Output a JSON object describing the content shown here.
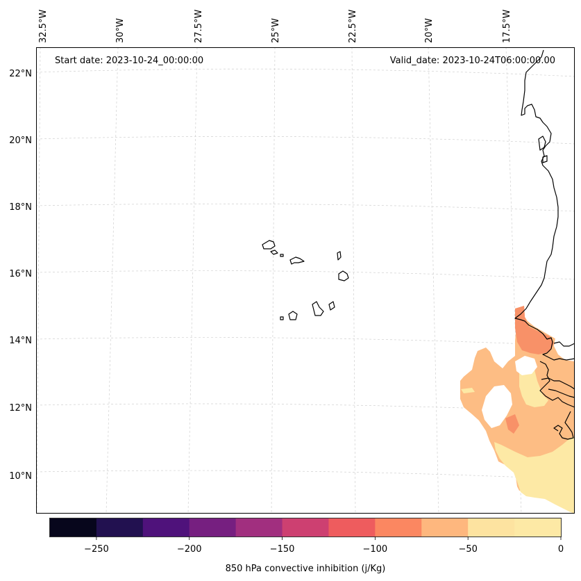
{
  "header": {
    "start_date": "Start date: 2023-10-24_00:00:00",
    "valid_date": "Valid_date: 2023-10-24T06:00:00.00"
  },
  "longitude_labels": [
    "32.5°W",
    "30°W",
    "27.5°W",
    "25°W",
    "22.5°W",
    "20°W",
    "17.5°W"
  ],
  "latitude_labels": [
    "22°N",
    "20°N",
    "18°N",
    "16°N",
    "14°N",
    "12°N",
    "10°N"
  ],
  "colorbar": {
    "label": "850 hPa convective inhibition (j/Kg)",
    "ticks": [
      "−250",
      "−200",
      "−150",
      "−100",
      "−50",
      "0"
    ],
    "range": [
      -275,
      0
    ],
    "step": 25,
    "colors": [
      "#07061c",
      "#221150",
      "#4f127b",
      "#761f80",
      "#a12f7f",
      "#cd4071",
      "#ee5c5e",
      "#fb8761",
      "#feb77e",
      "#fde3a0",
      "#fde9a5"
    ]
  },
  "map": {
    "gridlines": true,
    "features": [
      "cape-verde-islands",
      "west-africa-coastline"
    ],
    "field_colors": {
      "light": "#fde9a5",
      "mid": "#fdbd84",
      "strong": "#f89168"
    }
  }
}
